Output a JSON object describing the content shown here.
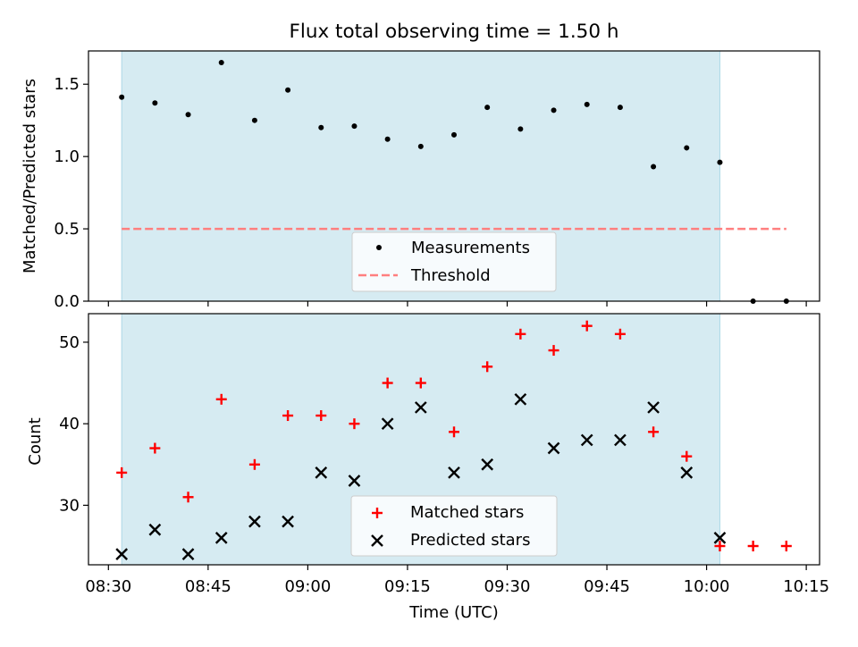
{
  "chart_data": [
    {
      "type": "scatter",
      "title": "Flux total observing time = 1.50 h",
      "xlabel": "",
      "ylabel": "Matched/Predicted stars",
      "ylim": [
        0,
        1.73
      ],
      "xlim": [
        "08:27",
        "10:17"
      ],
      "x_tick_labels_visible": false,
      "y_ticks": [
        0.0,
        0.5,
        1.0,
        1.5
      ],
      "y_tick_labels": [
        "0.0",
        "0.5",
        "1.0",
        "1.5"
      ],
      "shaded_span": [
        "08:32",
        "10:02"
      ],
      "shaded_color": "#add8e6",
      "threshold": 0.5,
      "legend_position": "lower center",
      "series": [
        {
          "name": "Measurements",
          "marker": "dot",
          "color": "#000000",
          "points": [
            {
              "x": "08:32",
              "y": 1.41
            },
            {
              "x": "08:37",
              "y": 1.37
            },
            {
              "x": "08:42",
              "y": 1.29
            },
            {
              "x": "08:47",
              "y": 1.65
            },
            {
              "x": "08:52",
              "y": 1.25
            },
            {
              "x": "08:57",
              "y": 1.46
            },
            {
              "x": "09:02",
              "y": 1.2
            },
            {
              "x": "09:07",
              "y": 1.21
            },
            {
              "x": "09:12",
              "y": 1.12
            },
            {
              "x": "09:17",
              "y": 1.07
            },
            {
              "x": "09:22",
              "y": 1.15
            },
            {
              "x": "09:27",
              "y": 1.34
            },
            {
              "x": "09:32",
              "y": 1.19
            },
            {
              "x": "09:37",
              "y": 1.32
            },
            {
              "x": "09:42",
              "y": 1.36
            },
            {
              "x": "09:47",
              "y": 1.34
            },
            {
              "x": "09:52",
              "y": 0.93
            },
            {
              "x": "09:57",
              "y": 1.06
            },
            {
              "x": "10:02",
              "y": 0.96
            },
            {
              "x": "10:07",
              "y": 0.0
            },
            {
              "x": "10:12",
              "y": 0.0
            }
          ]
        },
        {
          "name": "Threshold",
          "style": "dashed",
          "color": "#ff7f7f",
          "points": [
            {
              "x": "08:32",
              "y": 0.5
            },
            {
              "x": "10:12",
              "y": 0.5
            }
          ]
        }
      ]
    },
    {
      "type": "scatter",
      "xlabel": "Time (UTC)",
      "ylabel": "Count",
      "ylim": [
        22.7,
        53.5
      ],
      "xlim": [
        "08:27",
        "10:17"
      ],
      "x_ticks": [
        "08:30",
        "08:45",
        "09:00",
        "09:15",
        "09:30",
        "09:45",
        "10:00",
        "10:15"
      ],
      "y_ticks": [
        30,
        40,
        50
      ],
      "y_tick_labels": [
        "30",
        "40",
        "50"
      ],
      "shaded_span": [
        "08:32",
        "10:02"
      ],
      "shaded_color": "#add8e6",
      "legend_position": "lower center",
      "series": [
        {
          "name": "Matched stars",
          "marker": "plus",
          "color": "#ff0000",
          "points": [
            {
              "x": "08:32",
              "y": 34
            },
            {
              "x": "08:37",
              "y": 37
            },
            {
              "x": "08:42",
              "y": 31
            },
            {
              "x": "08:47",
              "y": 43
            },
            {
              "x": "08:52",
              "y": 35
            },
            {
              "x": "08:57",
              "y": 41
            },
            {
              "x": "09:02",
              "y": 41
            },
            {
              "x": "09:07",
              "y": 40
            },
            {
              "x": "09:12",
              "y": 45
            },
            {
              "x": "09:17",
              "y": 45
            },
            {
              "x": "09:22",
              "y": 39
            },
            {
              "x": "09:27",
              "y": 47
            },
            {
              "x": "09:32",
              "y": 51
            },
            {
              "x": "09:37",
              "y": 49
            },
            {
              "x": "09:42",
              "y": 52
            },
            {
              "x": "09:47",
              "y": 51
            },
            {
              "x": "09:52",
              "y": 39
            },
            {
              "x": "09:57",
              "y": 36
            },
            {
              "x": "10:02",
              "y": 25
            },
            {
              "x": "10:07",
              "y": 25
            },
            {
              "x": "10:12",
              "y": 25
            }
          ]
        },
        {
          "name": "Predicted stars",
          "marker": "x",
          "color": "#000000",
          "points": [
            {
              "x": "08:32",
              "y": 24
            },
            {
              "x": "08:37",
              "y": 27
            },
            {
              "x": "08:42",
              "y": 24
            },
            {
              "x": "08:47",
              "y": 26
            },
            {
              "x": "08:52",
              "y": 28
            },
            {
              "x": "08:57",
              "y": 28
            },
            {
              "x": "09:02",
              "y": 34
            },
            {
              "x": "09:07",
              "y": 33
            },
            {
              "x": "09:12",
              "y": 40
            },
            {
              "x": "09:17",
              "y": 42
            },
            {
              "x": "09:22",
              "y": 34
            },
            {
              "x": "09:27",
              "y": 35
            },
            {
              "x": "09:32",
              "y": 43
            },
            {
              "x": "09:37",
              "y": 37
            },
            {
              "x": "09:42",
              "y": 38
            },
            {
              "x": "09:47",
              "y": 38
            },
            {
              "x": "09:52",
              "y": 42
            },
            {
              "x": "09:57",
              "y": 34
            },
            {
              "x": "10:02",
              "y": 26
            }
          ]
        }
      ]
    }
  ]
}
